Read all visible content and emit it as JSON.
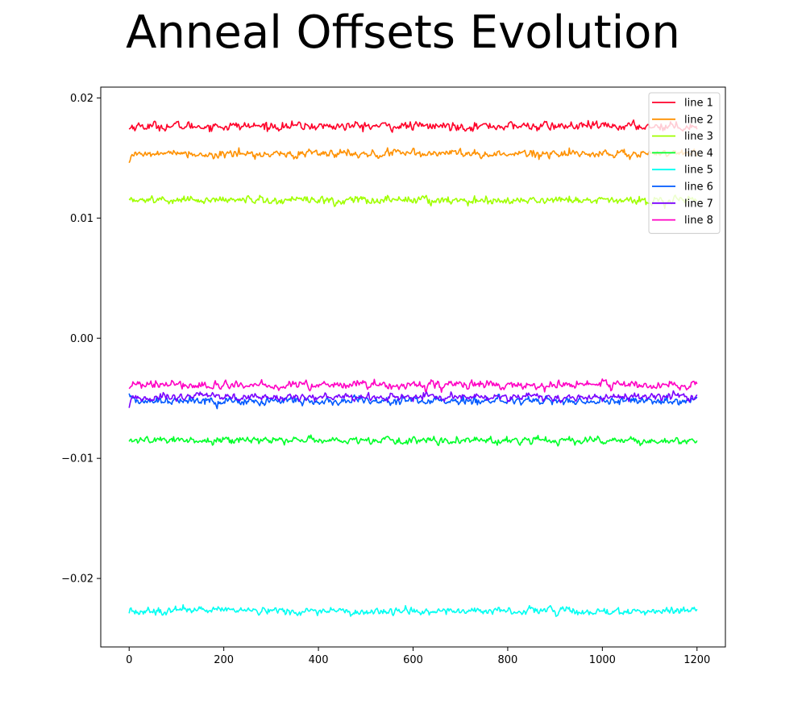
{
  "chart_data": {
    "type": "line",
    "title": "Anneal Offsets Evolution",
    "xlabel": "",
    "ylabel": "",
    "xlim": [
      -60,
      1260
    ],
    "ylim": [
      -0.0257,
      0.0209
    ],
    "x_ticks": [
      0,
      200,
      400,
      600,
      800,
      1000,
      1200
    ],
    "x_tick_labels": [
      "0",
      "200",
      "400",
      "600",
      "800",
      "1000",
      "1200"
    ],
    "y_ticks": [
      0.02,
      0.01,
      0.0,
      -0.01,
      -0.02
    ],
    "y_tick_labels": [
      "0.02",
      "0.01",
      "0.00",
      "−0.01",
      "−0.02"
    ],
    "grid": false,
    "legend_position": "top-right",
    "x_start": 0,
    "x_end": 1200,
    "x_step": 2,
    "series": [
      {
        "name": "line 1",
        "color": "#ff0029",
        "mean": 0.01765,
        "noise": 0.0003,
        "start": 0.0174
      },
      {
        "name": "line 2",
        "color": "#ff9100",
        "mean": 0.01535,
        "noise": 0.00028,
        "start": 0.0146
      },
      {
        "name": "line 3",
        "color": "#a0ff00",
        "mean": 0.0115,
        "noise": 0.00028,
        "start": 0.0116
      },
      {
        "name": "line 4",
        "color": "#00ff2a",
        "mean": -0.0085,
        "noise": 0.00025,
        "start": -0.0086
      },
      {
        "name": "line 5",
        "color": "#00fff2",
        "mean": -0.0227,
        "noise": 0.00025,
        "start": -0.0229
      },
      {
        "name": "line 6",
        "color": "#0059ff",
        "mean": -0.0052,
        "noise": 0.00028,
        "start": -0.0046
      },
      {
        "name": "line 7",
        "color": "#7a00ff",
        "mean": -0.0049,
        "noise": 0.00025,
        "start": -0.0058
      },
      {
        "name": "line 8",
        "color": "#ff00c4",
        "mean": -0.0039,
        "noise": 0.0003,
        "start": -0.0042
      }
    ]
  }
}
